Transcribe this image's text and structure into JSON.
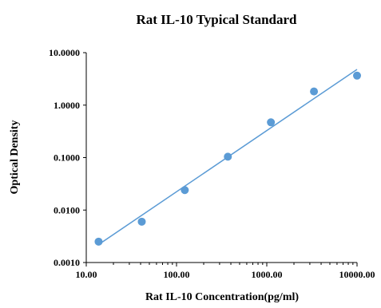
{
  "chart_data": {
    "type": "scatter",
    "title": "Rat IL-10 Typical Standard",
    "xlabel": "Rat IL-10 Concentration(pg/ml)",
    "ylabel": "Optical Density",
    "x_scale": "log",
    "y_scale": "log",
    "xlim": [
      10,
      10000
    ],
    "ylim": [
      0.001,
      10
    ],
    "x_ticks": [
      10,
      100,
      1000,
      10000
    ],
    "x_tick_labels": [
      "10.00",
      "100.00",
      "1000.00",
      "10000.00"
    ],
    "y_ticks": [
      0.001,
      0.01,
      0.1,
      1,
      10
    ],
    "y_tick_labels": [
      "0.0010",
      "0.0100",
      "0.1000",
      "1.0000",
      "10.0000"
    ],
    "grid": false,
    "legend": "none",
    "series": [
      {
        "points": [
          {
            "x": 13.7,
            "y": 0.0025
          },
          {
            "x": 41.2,
            "y": 0.006
          },
          {
            "x": 123.5,
            "y": 0.024
          },
          {
            "x": 370.4,
            "y": 0.104
          },
          {
            "x": 1111,
            "y": 0.47
          },
          {
            "x": 3333,
            "y": 1.82
          },
          {
            "x": 10000,
            "y": 3.65
          }
        ],
        "color": "#5b9bd5"
      }
    ],
    "trendline": {
      "from": {
        "x": 13.7,
        "y": 0.0022
      },
      "to": {
        "x": 10000,
        "y": 4.8
      },
      "color": "#5b9bd5"
    }
  }
}
